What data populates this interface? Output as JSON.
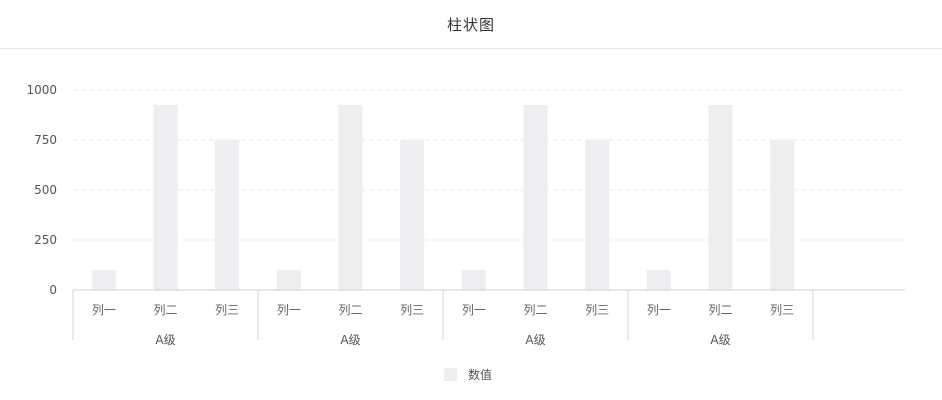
{
  "title": "柱状图",
  "chart_data": {
    "type": "bar",
    "groups": [
      {
        "label": "A级",
        "categories": [
          "列一",
          "列二",
          "列三"
        ],
        "values": [
          100,
          925,
          750
        ]
      },
      {
        "label": "A级",
        "categories": [
          "列一",
          "列二",
          "列三"
        ],
        "values": [
          100,
          925,
          750
        ]
      },
      {
        "label": "A级",
        "categories": [
          "列一",
          "列二",
          "列三"
        ],
        "values": [
          100,
          925,
          750
        ]
      },
      {
        "label": "A级",
        "categories": [
          "列一",
          "列二",
          "列三"
        ],
        "values": [
          100,
          925,
          750
        ]
      }
    ],
    "series": [
      {
        "name": "数值",
        "color": "#eeeef1"
      }
    ],
    "yticks": [
      0,
      250,
      500,
      750,
      1000
    ],
    "ylim": [
      0,
      1000
    ],
    "grid": true,
    "legend": "bottom-center"
  }
}
